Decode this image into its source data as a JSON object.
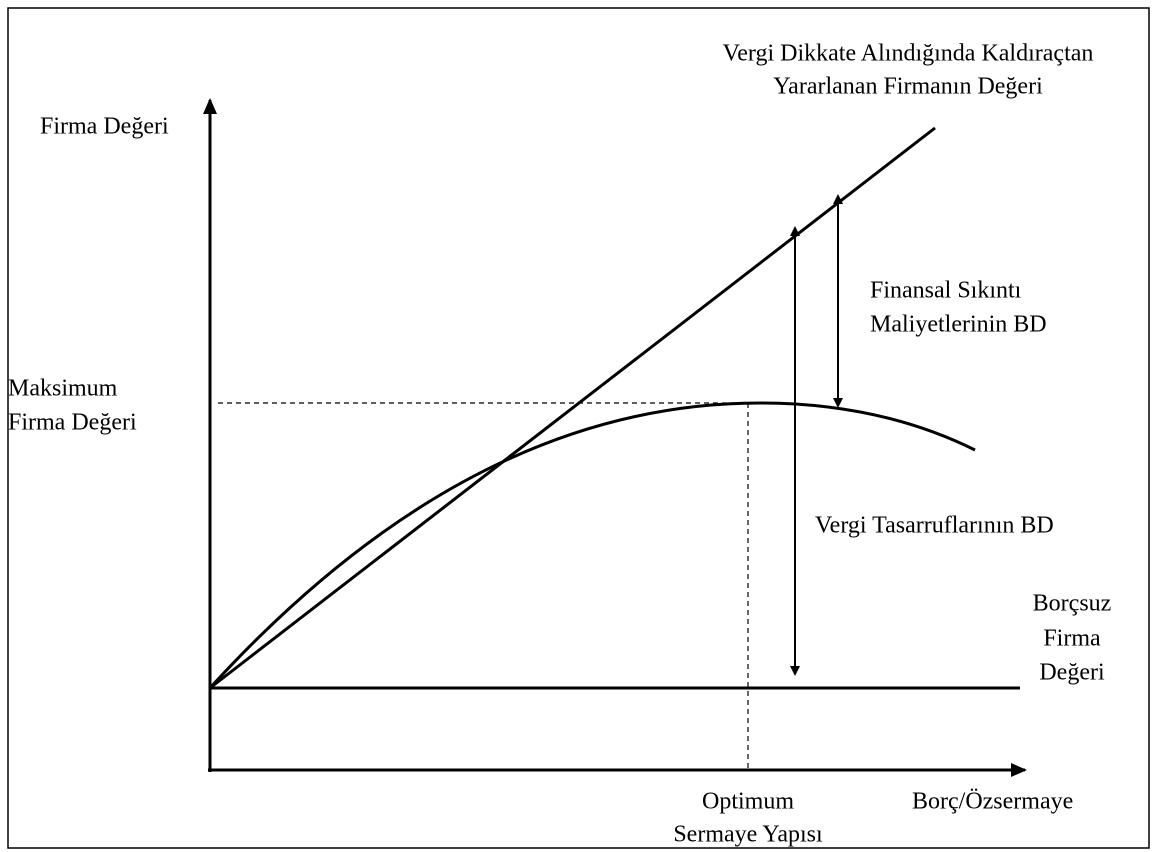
{
  "labels": {
    "leveraged_value": [
      "Vergi Dikkate Alındığında Kaldıraçtan",
      "Yararlanan Firmanın Değeri"
    ],
    "y_axis": "Firma Değeri",
    "distress_costs": [
      "Finansal Sıkıntı",
      "Maliyetlerinin BD"
    ],
    "max_value": [
      "Maksimum",
      "Firma Değeri"
    ],
    "tax_savings": "Vergi Tasarruflarının BD",
    "unlevered_value": [
      "Borçsuz",
      "Firma",
      "Değeri"
    ],
    "optimum": [
      "Optimum",
      "Sermaye Yapısı"
    ],
    "x_axis": "Borç/Özsermaye"
  }
}
